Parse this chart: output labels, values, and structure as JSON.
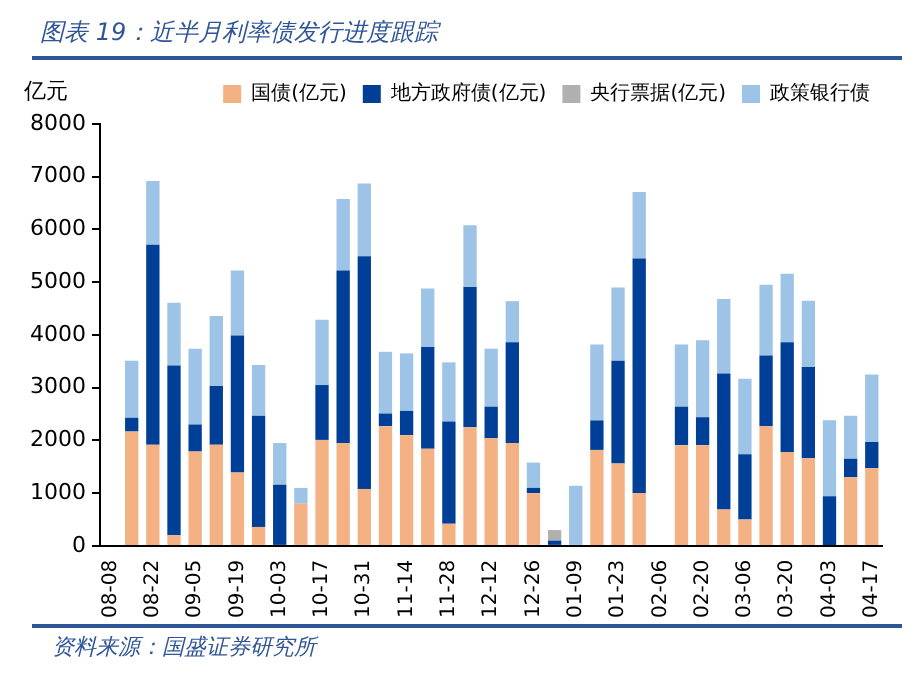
{
  "chart_data": {
    "type": "bar",
    "title": "图表 19：近半月利率债发行进度跟踪",
    "ylabel": "亿元",
    "stacked": true,
    "legend": "top",
    "grid": false,
    "categories": [
      "08-08",
      null,
      "08-22",
      null,
      "09-05",
      null,
      "09-19",
      null,
      "10-03",
      null,
      "10-17",
      null,
      "10-31",
      null,
      "11-14",
      null,
      "11-28",
      null,
      "12-12",
      null,
      "12-26",
      null,
      "01-09",
      null,
      "01-23",
      null,
      "02-06",
      null,
      "02-20",
      null,
      "03-06",
      null,
      "03-20",
      null,
      "04-03",
      null,
      "04-17"
    ],
    "ylim": [
      0,
      8000
    ],
    "yticks": [
      0,
      1000,
      2000,
      3000,
      4000,
      5000,
      6000,
      7000,
      8000
    ],
    "series": [
      {
        "name": "国债(亿元)",
        "color": "#f4b183",
        "values": [
          null,
          2170,
          1920,
          200,
          1790,
          1920,
          1390,
          360,
          0,
          800,
          2010,
          1950,
          1080,
          2270,
          2100,
          1840,
          420,
          2250,
          2040,
          1950,
          1000,
          0,
          0,
          1820,
          1560,
          1000,
          null,
          1910,
          1910,
          690,
          500,
          2270,
          1780,
          1660,
          0,
          1300,
          1470
        ]
      },
      {
        "name": "地方政府债(亿元)",
        "color": "#003f98",
        "values": [
          null,
          260,
          3790,
          3220,
          510,
          1110,
          2600,
          2110,
          1160,
          0,
          1040,
          3270,
          4410,
          240,
          460,
          1930,
          1940,
          2660,
          600,
          1910,
          100,
          100,
          0,
          560,
          1950,
          4450,
          null,
          730,
          530,
          2580,
          1240,
          1340,
          2080,
          1730,
          940,
          350,
          500
        ]
      },
      {
        "name": "央行票据(亿元)",
        "color": "#b0b0b0",
        "values": [
          null,
          0,
          0,
          0,
          0,
          0,
          0,
          0,
          0,
          0,
          0,
          0,
          0,
          0,
          0,
          0,
          0,
          0,
          0,
          0,
          0,
          200,
          0,
          0,
          0,
          0,
          null,
          0,
          0,
          0,
          0,
          0,
          0,
          0,
          0,
          0,
          0
        ]
      },
      {
        "name": "政策银行债",
        "color": "#9dc3e6",
        "values": [
          null,
          1080,
          1210,
          1190,
          1440,
          1330,
          1230,
          960,
          790,
          300,
          1240,
          1360,
          1380,
          1170,
          1090,
          1110,
          1120,
          1170,
          1100,
          780,
          480,
          0,
          1140,
          1440,
          1390,
          1260,
          null,
          1180,
          1460,
          1410,
          1430,
          1340,
          1300,
          1260,
          1440,
          820,
          1280
        ]
      }
    ],
    "annotations": [
      "资料来源：国盛证券研究所"
    ]
  }
}
